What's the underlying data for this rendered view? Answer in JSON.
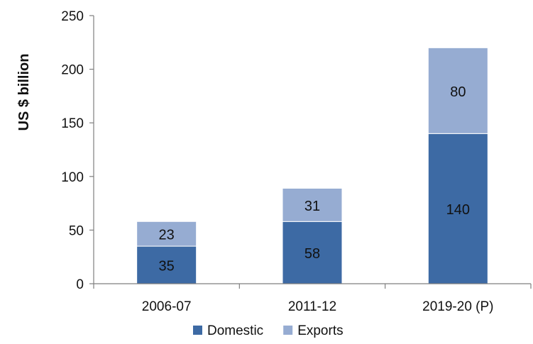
{
  "chart_data": {
    "type": "bar",
    "stacked": true,
    "categories": [
      "2006-07",
      "2011-12",
      "2019-20 (P)"
    ],
    "series": [
      {
        "name": "Domestic",
        "color": "#3d6aa4",
        "values": [
          35,
          58,
          140
        ]
      },
      {
        "name": "Exports",
        "color": "#96acd2",
        "values": [
          23,
          31,
          80
        ]
      }
    ],
    "ylabel": "US $ billion",
    "ylim": [
      0,
      250
    ],
    "yticks": [
      0,
      50,
      100,
      150,
      200,
      250
    ],
    "data_labels": true,
    "grid": false,
    "legend": "bottom"
  }
}
